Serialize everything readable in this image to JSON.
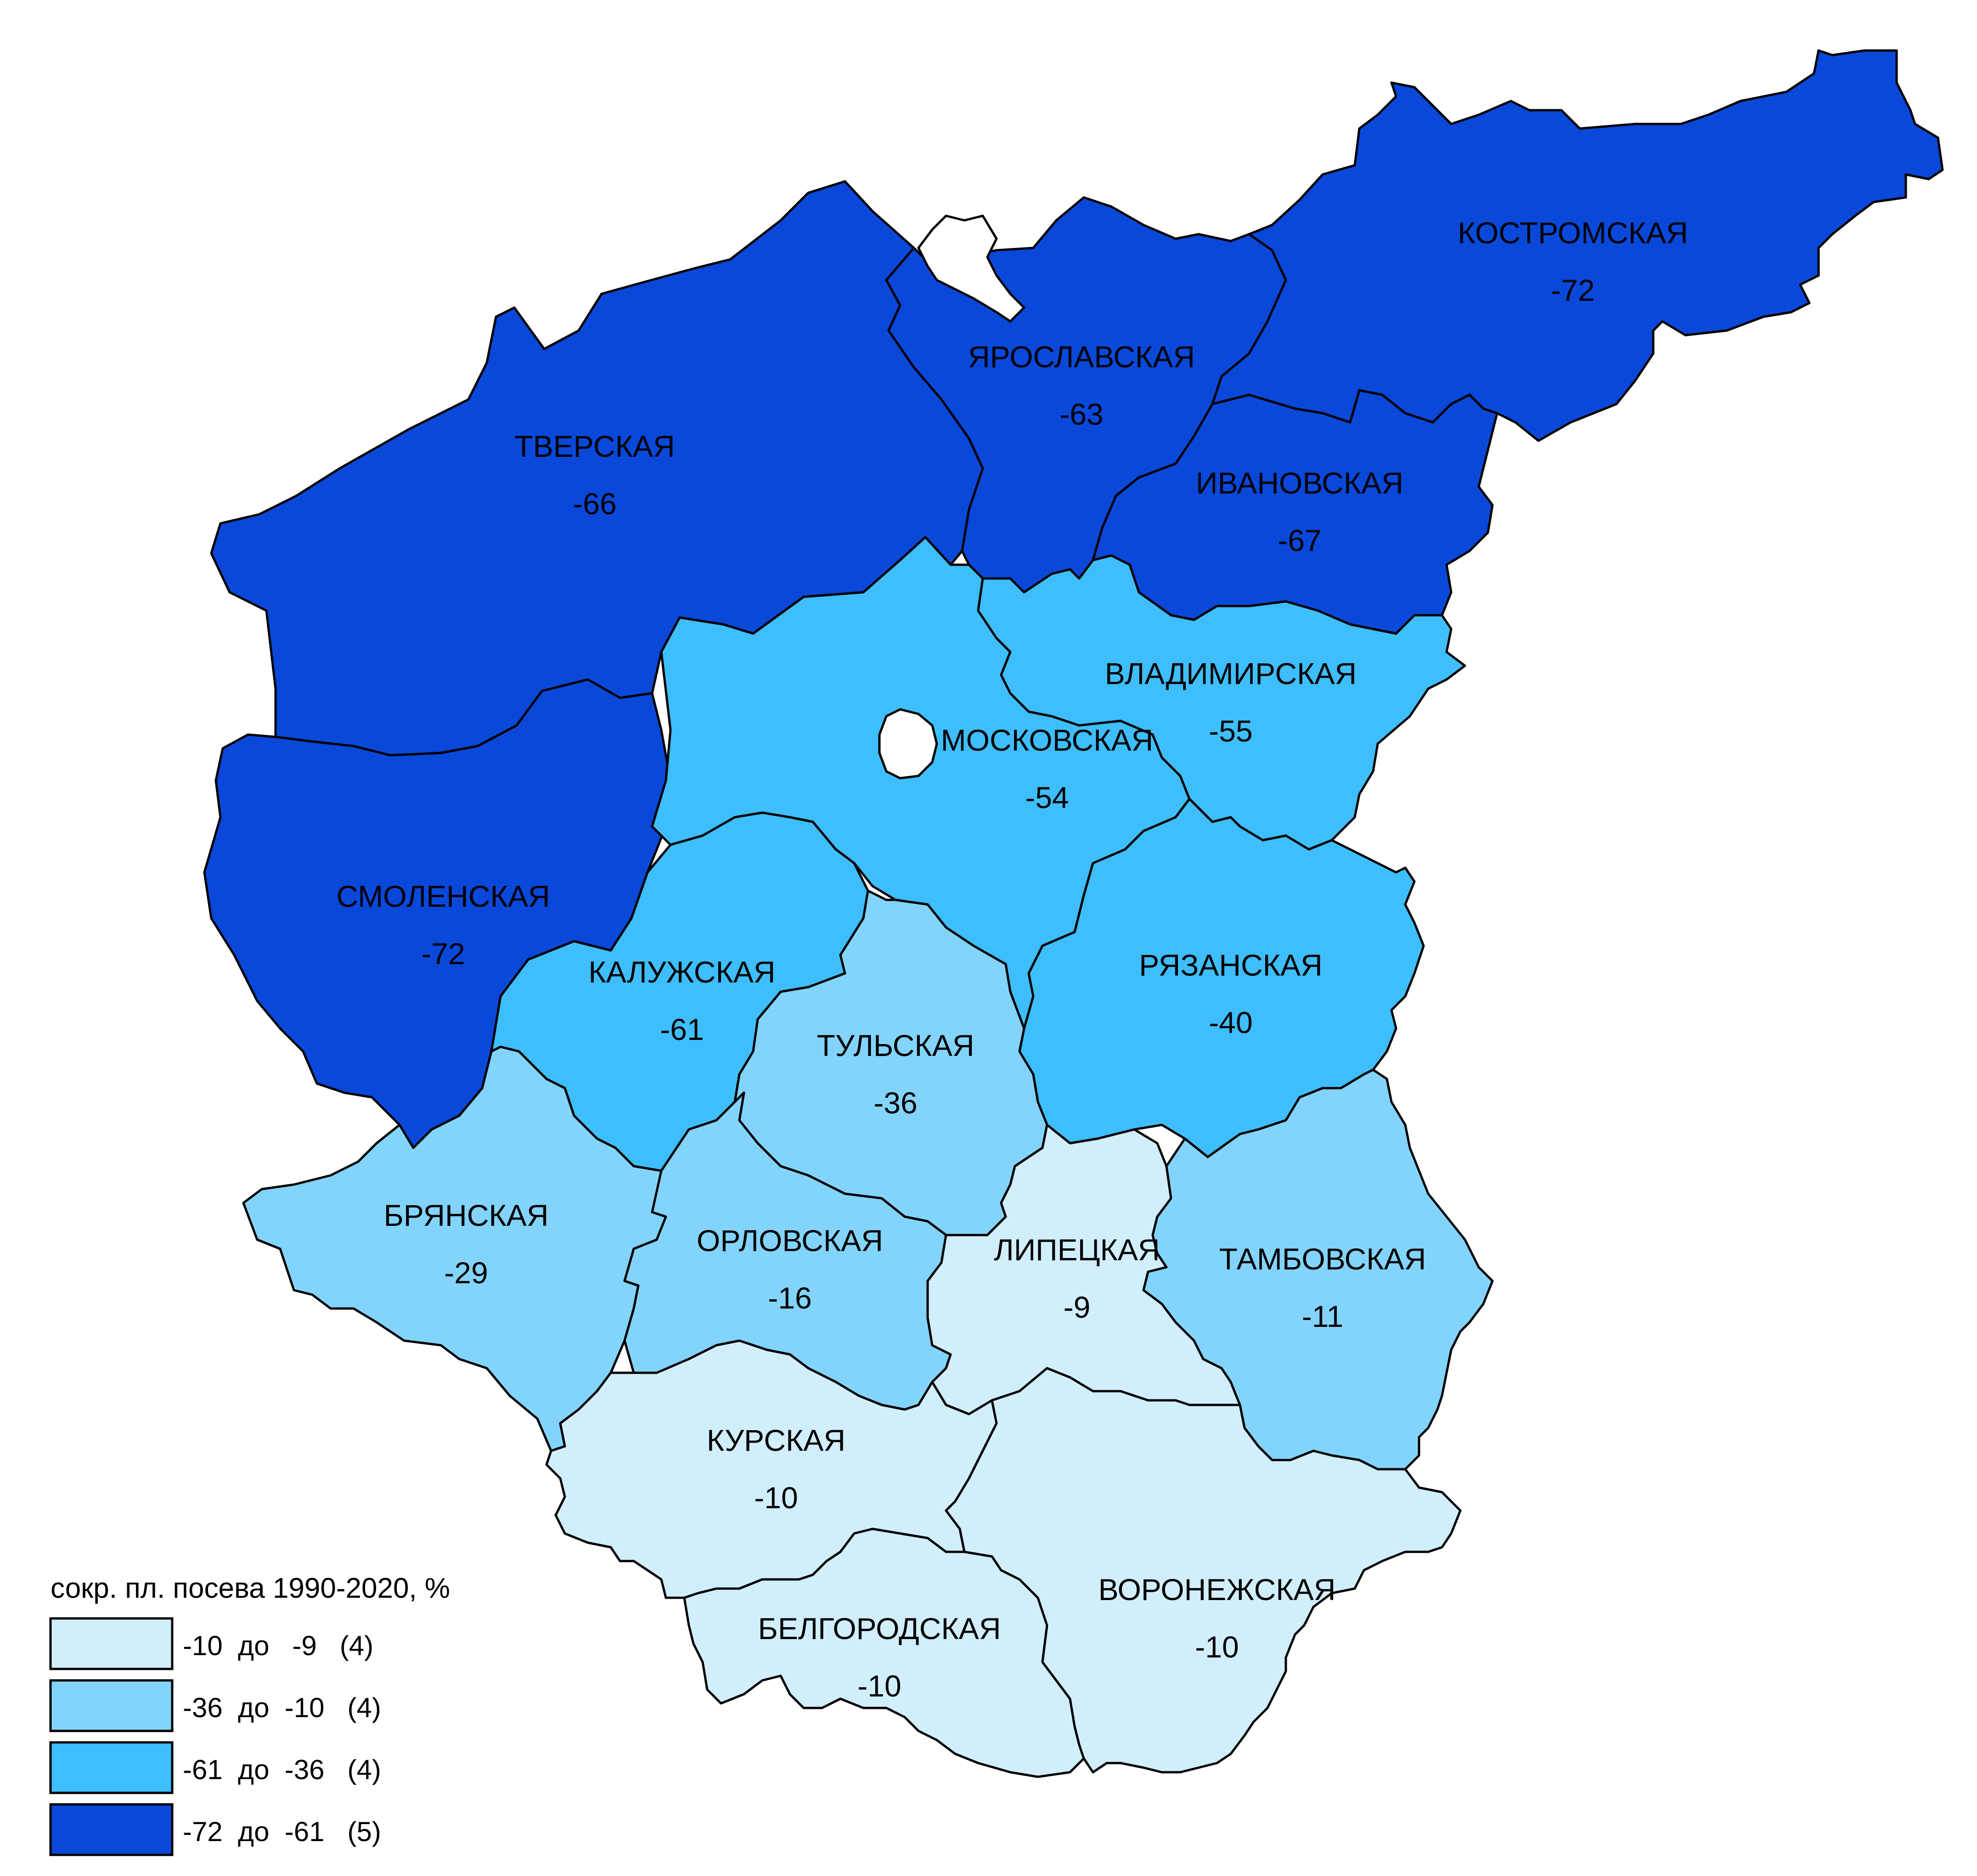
{
  "legend": {
    "title": "сокр. пл. посева 1990-2020, %",
    "classes": [
      {
        "label": "-10  до   -9   (4)",
        "color": "#d1eefc"
      },
      {
        "label": "-36  до  -10   (4)",
        "color": "#83d4fc"
      },
      {
        "label": "-61  до  -36   (4)",
        "color": "#3fbefd"
      },
      {
        "label": "-72  до  -61   (5)",
        "color": "#0a48da"
      }
    ]
  },
  "regions": [
    {
      "id": "tverskaya",
      "name": "ТВЕРСКАЯ",
      "value": "-66",
      "class": 3
    },
    {
      "id": "smolenskaya",
      "name": "СМОЛЕНСКАЯ",
      "value": "-72",
      "class": 3
    },
    {
      "id": "yaroslavskaya",
      "name": "ЯРОСЛАВСКАЯ",
      "value": "-63",
      "class": 3
    },
    {
      "id": "kostromskaya",
      "name": "КОСТРОМСКАЯ",
      "value": "-72",
      "class": 3
    },
    {
      "id": "ivanovskaya",
      "name": "ИВАНОВСКАЯ",
      "value": "-67",
      "class": 3
    },
    {
      "id": "moskovskaya",
      "name": "МОСКОВСКАЯ",
      "value": "-54",
      "class": 2
    },
    {
      "id": "vladimirskaya",
      "name": "ВЛАДИМИРСКАЯ",
      "value": "-55",
      "class": 2
    },
    {
      "id": "kaluzhskaya",
      "name": "КАЛУЖСКАЯ",
      "value": "-61",
      "class": 2
    },
    {
      "id": "ryazanskaya",
      "name": "РЯЗАНСКАЯ",
      "value": "-40",
      "class": 2
    },
    {
      "id": "tulskaya",
      "name": "ТУЛЬСКАЯ",
      "value": "-36",
      "class": 1
    },
    {
      "id": "bryanskaya",
      "name": "БРЯНСКАЯ",
      "value": "-29",
      "class": 1
    },
    {
      "id": "orlovskaya",
      "name": "ОРЛОВСКАЯ",
      "value": "-16",
      "class": 1
    },
    {
      "id": "tambovskaya",
      "name": "ТАМБОВСКАЯ",
      "value": "-11",
      "class": 1
    },
    {
      "id": "lipetskaya",
      "name": "ЛИПЕЦКАЯ",
      "value": "-9",
      "class": 0
    },
    {
      "id": "kurskaya",
      "name": "КУРСКАЯ",
      "value": "-10",
      "class": 0
    },
    {
      "id": "belgorodskaya",
      "name": "БЕЛГОРОДСКАЯ",
      "value": "-10",
      "class": 0
    },
    {
      "id": "voronezhskaya",
      "name": "ВОРОНЕЖСКАЯ",
      "value": "-10",
      "class": 0
    }
  ]
}
